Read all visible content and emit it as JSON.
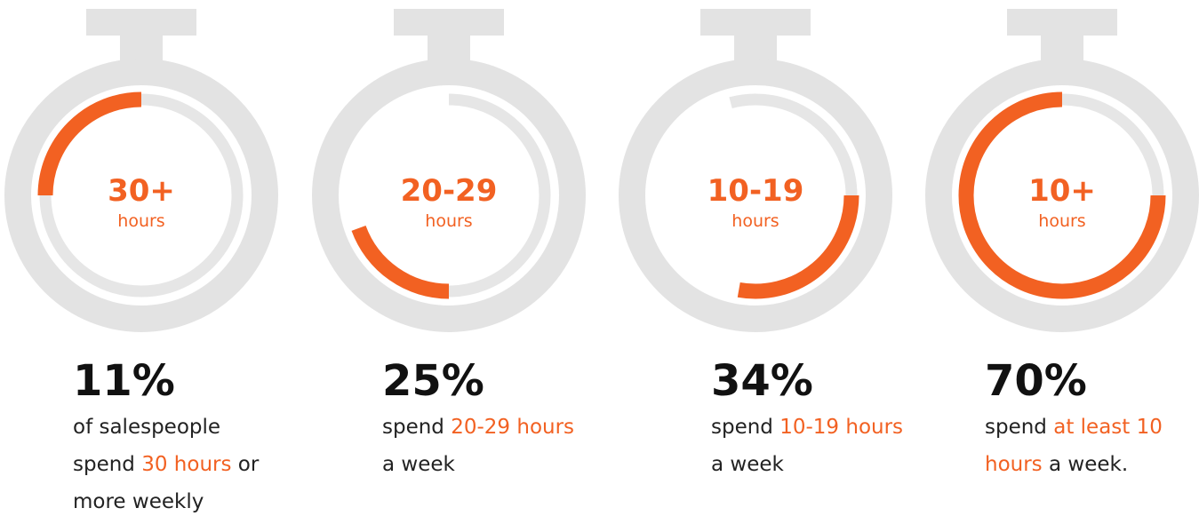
{
  "items": [
    {
      "value": "30+",
      "unit": "hours",
      "stat": "11%",
      "lines": [
        [
          {
            "text": "of salespeople"
          }
        ],
        [
          {
            "text": "spend "
          },
          {
            "text": "30 hours",
            "highlight": true
          },
          {
            "text": " or"
          }
        ],
        [
          {
            "text": "more weekly"
          }
        ]
      ]
    },
    {
      "value": "20-29",
      "unit": "hours",
      "stat": "25%",
      "lines": [
        [
          {
            "text": "spend "
          },
          {
            "text": "20-29 hours",
            "highlight": true
          }
        ],
        [
          {
            "text": "a week"
          }
        ]
      ]
    },
    {
      "value": "10-19",
      "unit": "hours",
      "stat": "34%",
      "lines": [
        [
          {
            "text": "spend "
          },
          {
            "text": "10-19 hours",
            "highlight": true
          }
        ],
        [
          {
            "text": "a week"
          }
        ]
      ]
    },
    {
      "value": "10+",
      "unit": "hours",
      "stat": "70%",
      "lines": [
        [
          {
            "text": "spend "
          },
          {
            "text": "at least 10",
            "highlight": true
          }
        ],
        [
          {
            "text": "hours",
            "highlight": true
          },
          {
            "text": " a week."
          }
        ]
      ]
    }
  ]
}
